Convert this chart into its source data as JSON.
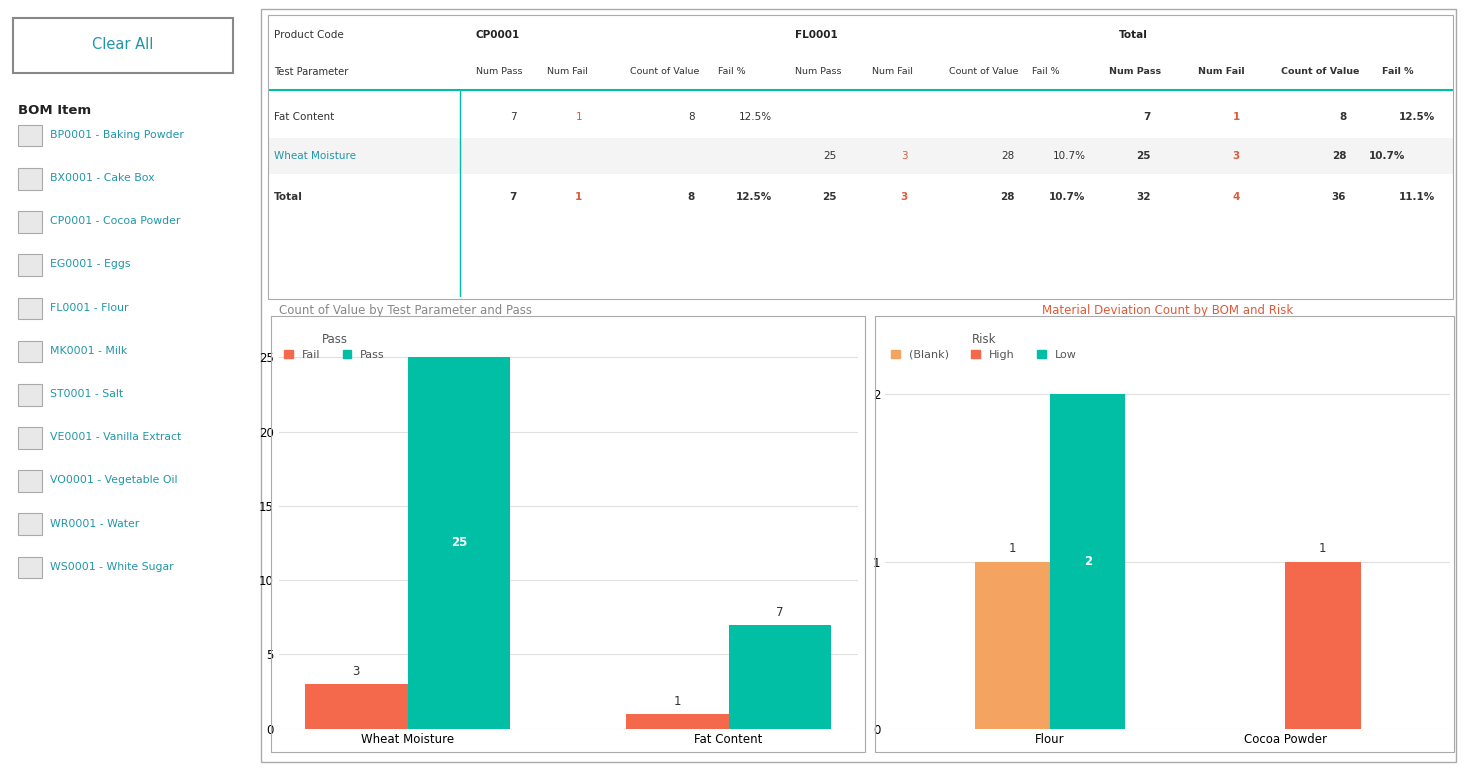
{
  "clear_all_btn": "Clear All",
  "bom_items": [
    "BP0001 - Baking Powder",
    "BX0001 - Cake Box",
    "CP0001 - Cocoa Powder",
    "EG0001 - Eggs",
    "FL0001 - Flour",
    "MK0001 - Milk",
    "ST0001 - Salt",
    "VE0001 - Vanilla Extract",
    "VO0001 - Vegetable Oil",
    "WR0001 - Water",
    "WS0001 - White Sugar"
  ],
  "bom_label": "BOM Item",
  "bar_chart1_title": "Count of Value by Test Parameter and Pass",
  "bar_chart1_legend_title": "Pass",
  "bar_chart1_legend_labels": [
    "Fail",
    "Pass"
  ],
  "bar_chart1_colors": [
    "#F4694B",
    "#00BFA5"
  ],
  "bar_chart1_categories": [
    "Wheat Moisture",
    "Fat Content"
  ],
  "bar_chart1_fail": [
    3,
    1
  ],
  "bar_chart1_pass": [
    25,
    7
  ],
  "bar_chart1_yticks": [
    0,
    5,
    10,
    15,
    20,
    25
  ],
  "bar_chart1_ylim": [
    0,
    27
  ],
  "bar_chart2_title": "Material Deviation Count by BOM and Risk",
  "bar_chart2_legend_title": "Risk",
  "bar_chart2_legend_labels": [
    "(Blank)",
    "High",
    "Low"
  ],
  "bar_chart2_colors": [
    "#F4A460",
    "#F4694B",
    "#00BFA5"
  ],
  "bar_chart2_categories": [
    "Flour",
    "Cocoa Powder"
  ],
  "bar_chart2_high": [
    1,
    0
  ],
  "bar_chart2_low": [
    2,
    1
  ],
  "bar_chart2_yticks": [
    0,
    1,
    2
  ],
  "bar_chart2_ylim": [
    0,
    2.4
  ],
  "bg_color": "#FFFFFF",
  "teal_color": "#2196A8",
  "fail_color": "#E05A3A",
  "teal_line": "#00BFA5",
  "gray_border": "#AAAAAA",
  "table_gray_border": "#CCCCCC",
  "alt_row_bg": "#F4F4F4",
  "grid_color": "#E0E0E0"
}
